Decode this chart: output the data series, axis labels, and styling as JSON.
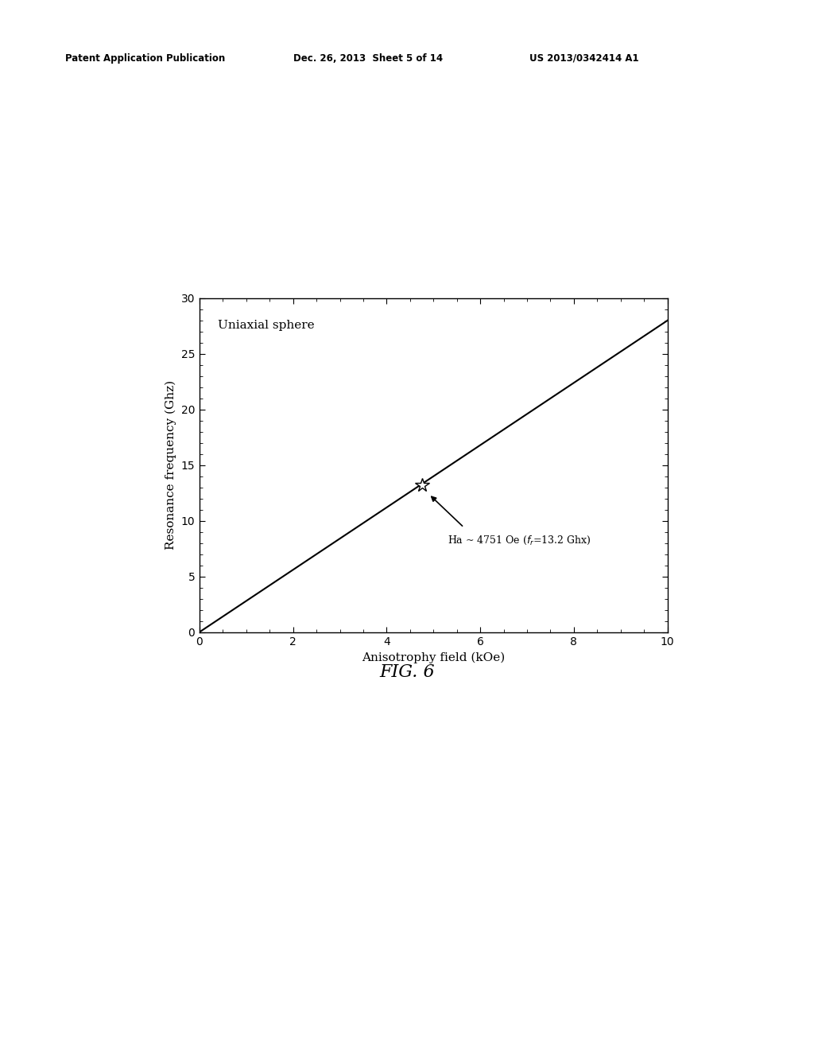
{
  "title_header_left": "Patent Application Publication",
  "title_header_mid": "Dec. 26, 2013  Sheet 5 of 14",
  "title_header_right": "US 2013/0342414 A1",
  "fig_label": "FIG. 6",
  "plot_label": "Uniaxial sphere",
  "xlabel": "Anisotrophy field (kOe)",
  "ylabel": "Resonance frequency (Ghz)",
  "xlim": [
    0,
    10
  ],
  "ylim": [
    0,
    30
  ],
  "xticks": [
    0,
    2,
    4,
    6,
    8,
    10
  ],
  "yticks": [
    0,
    5,
    10,
    15,
    20,
    25,
    30
  ],
  "line_x": [
    0,
    10
  ],
  "line_y": [
    0,
    28.0
  ],
  "star_x": 4.751,
  "star_y": 13.2,
  "line_color": "#000000",
  "bg_color": "#ffffff",
  "text_color": "#000000"
}
